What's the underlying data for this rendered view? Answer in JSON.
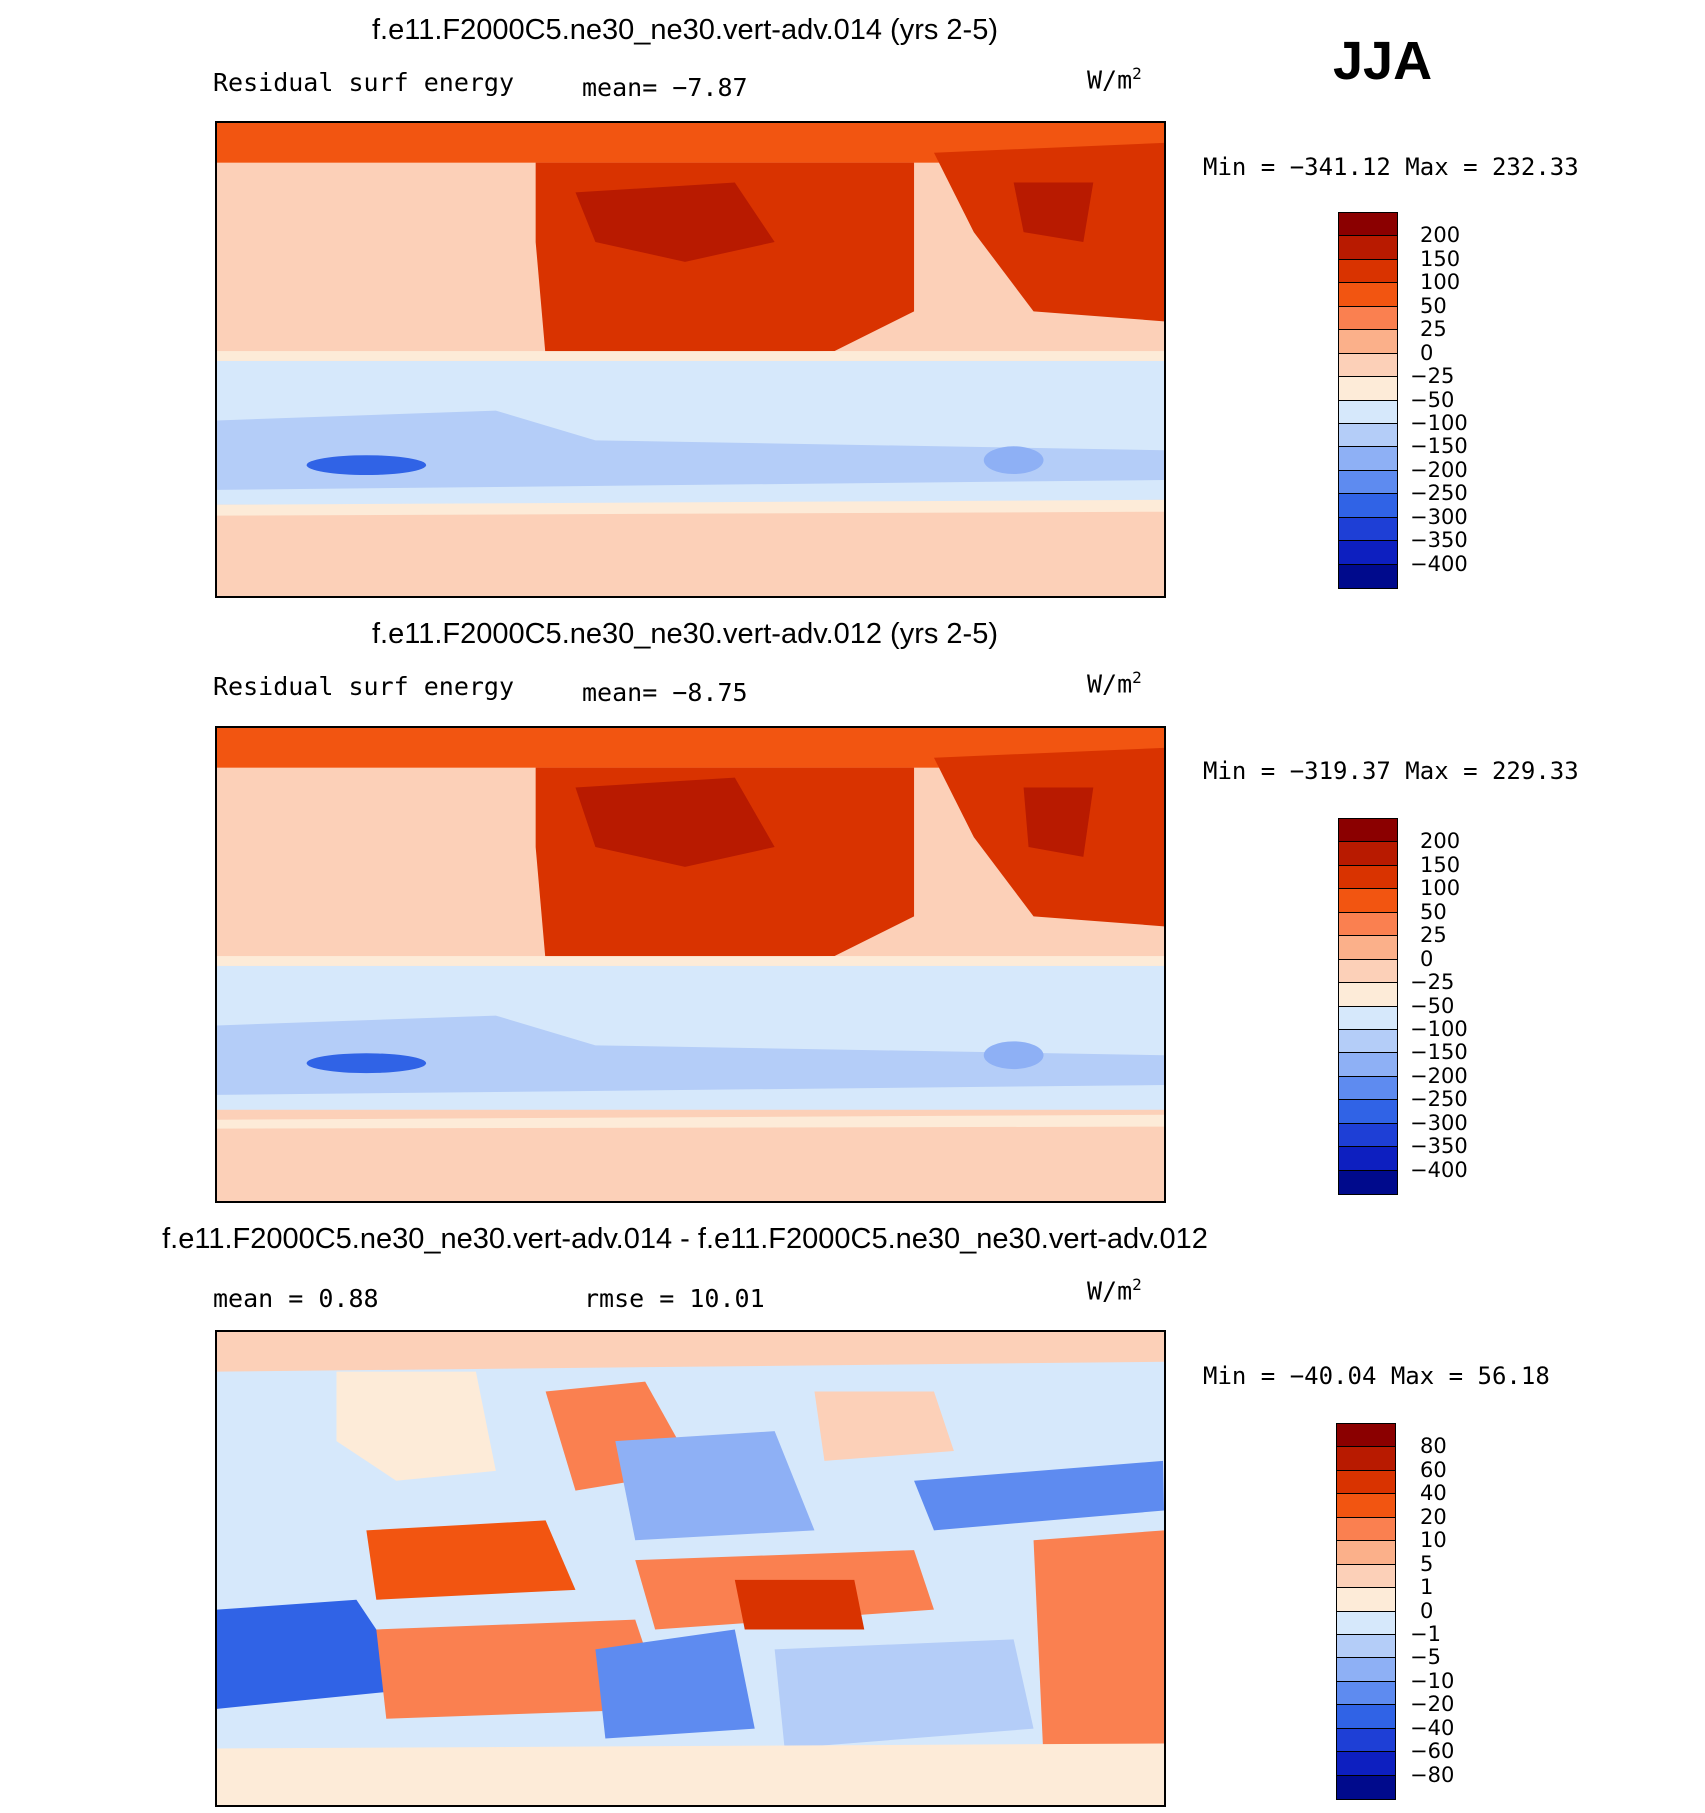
{
  "season": "JJA",
  "units_prefix": "W/m",
  "units_sup": "2",
  "panels": [
    {
      "title": "f.e11.F2000C5.ne30_ne30.vert-adv.014 (yrs 2-5)",
      "left_label": "Residual surf energy",
      "mid_label": "mean=   −7.87",
      "minmax": "Min = −341.12 Max = 232.33",
      "levels": [
        "200",
        "150",
        "100",
        "50",
        "25",
        "0",
        "−25",
        "−50",
        "−100",
        "−150",
        "−200",
        "−250",
        "−300",
        "−350",
        "−400"
      ],
      "colors": [
        "#8b0000",
        "#b81a00",
        "#d93300",
        "#f25511",
        "#fa8050",
        "#fbb08a",
        "#fcd0b8",
        "#fdebd8",
        "#d6e8fb",
        "#b4cdf8",
        "#8eb0f5",
        "#5e8bf0",
        "#3063e6",
        "#1e3fd6",
        "#0d1fc0",
        "#000a8c"
      ]
    },
    {
      "title": "f.e11.F2000C5.ne30_ne30.vert-adv.012 (yrs 2-5)",
      "left_label": "Residual surf energy",
      "mid_label": "mean=   −8.75",
      "minmax": "Min = −319.37 Max = 229.33",
      "levels": [
        "200",
        "150",
        "100",
        "50",
        "25",
        "0",
        "−25",
        "−50",
        "−100",
        "−150",
        "−200",
        "−250",
        "−300",
        "−350",
        "−400"
      ],
      "colors": [
        "#8b0000",
        "#b81a00",
        "#d93300",
        "#f25511",
        "#fa8050",
        "#fbb08a",
        "#fcd0b8",
        "#fdebd8",
        "#d6e8fb",
        "#b4cdf8",
        "#8eb0f5",
        "#5e8bf0",
        "#3063e6",
        "#1e3fd6",
        "#0d1fc0",
        "#000a8c"
      ]
    },
    {
      "title": "f.e11.F2000C5.ne30_ne30.vert-adv.014 - f.e11.F2000C5.ne30_ne30.vert-adv.012",
      "left_label": "mean =    0.88",
      "mid_label": "rmse =   10.01",
      "minmax": "Min = −40.04 Max =  56.18",
      "levels": [
        "80",
        "60",
        "40",
        "20",
        "10",
        "5",
        "1",
        "0",
        "−1",
        "−5",
        "−10",
        "−20",
        "−40",
        "−60",
        "−80"
      ],
      "colors": [
        "#8b0000",
        "#b81a00",
        "#d93300",
        "#f25511",
        "#fa8050",
        "#fbb08a",
        "#fcd0b8",
        "#fdebd8",
        "#d6e8fb",
        "#b4cdf8",
        "#8eb0f5",
        "#5e8bf0",
        "#3063e6",
        "#1e3fd6",
        "#0d1fc0",
        "#000a8c"
      ]
    }
  ]
}
